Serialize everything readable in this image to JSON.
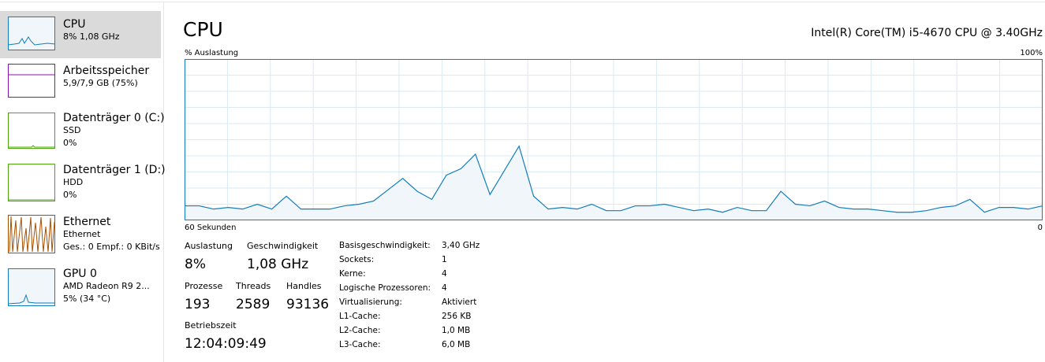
{
  "sidebar": {
    "items": [
      {
        "title": "CPU",
        "line1": "8% 1,08 GHz"
      },
      {
        "title": "Arbeitsspeicher",
        "line1": "5,9/7,9 GB (75%)"
      },
      {
        "title": "Datenträger 0 (C:)",
        "line1": "SSD",
        "line2": "0%"
      },
      {
        "title": "Datenträger 1 (D:)",
        "line1": "HDD",
        "line2": "0%"
      },
      {
        "title": "Ethernet",
        "line1": "Ethernet",
        "line2": "Ges.: 0 Empf.: 0 KBit/s"
      },
      {
        "title": "GPU 0",
        "line1": "AMD Radeon R9 2...",
        "line2": "5% (34 °C)"
      }
    ]
  },
  "header": {
    "title": "CPU",
    "processor": "Intel(R) Core(TM) i5-4670 CPU @ 3.40GHz"
  },
  "chart_data": {
    "type": "area",
    "y_label": "% Auslastung",
    "x_start_label": "60 Sekunden",
    "x_end_label": "0",
    "ylim": [
      0,
      100
    ],
    "yticks": [
      {
        "value": 100,
        "label": "100%"
      }
    ],
    "color": "#117dbb",
    "values": [
      9,
      9,
      7,
      8,
      7,
      10,
      7,
      15,
      7,
      7,
      7,
      9,
      10,
      12,
      19,
      26,
      18,
      13,
      28,
      32,
      41,
      16,
      31,
      46,
      15,
      7,
      8,
      7,
      10,
      6,
      6,
      9,
      9,
      10,
      8,
      6,
      7,
      5,
      8,
      6,
      6,
      18,
      10,
      9,
      12,
      8,
      7,
      7,
      6,
      5,
      5,
      6,
      8,
      9,
      13,
      5,
      8,
      8,
      7,
      9
    ]
  },
  "stats": [
    {
      "label": "Auslastung",
      "value": "8%"
    },
    {
      "label": "Geschwindigkeit",
      "value": "1,08 GHz"
    },
    {
      "label": "Prozesse",
      "value": "193"
    },
    {
      "label": "Threads",
      "value": "2589"
    },
    {
      "label": "Handles",
      "value": "93136"
    },
    {
      "label": "Betriebszeit",
      "value": "12:04:09:49"
    }
  ],
  "details": [
    {
      "label": "Basisgeschwindigkeit:",
      "value": "3,40 GHz"
    },
    {
      "label": "Sockets:",
      "value": "1"
    },
    {
      "label": "Kerne:",
      "value": "4"
    },
    {
      "label": "Logische Prozessoren:",
      "value": "4"
    },
    {
      "label": "Virtualisierung:",
      "value": "Aktiviert"
    },
    {
      "label": "L1-Cache:",
      "value": "256 KB"
    },
    {
      "label": "L2-Cache:",
      "value": "1,0 MB"
    },
    {
      "label": "L3-Cache:",
      "value": "6,0 MB"
    }
  ]
}
